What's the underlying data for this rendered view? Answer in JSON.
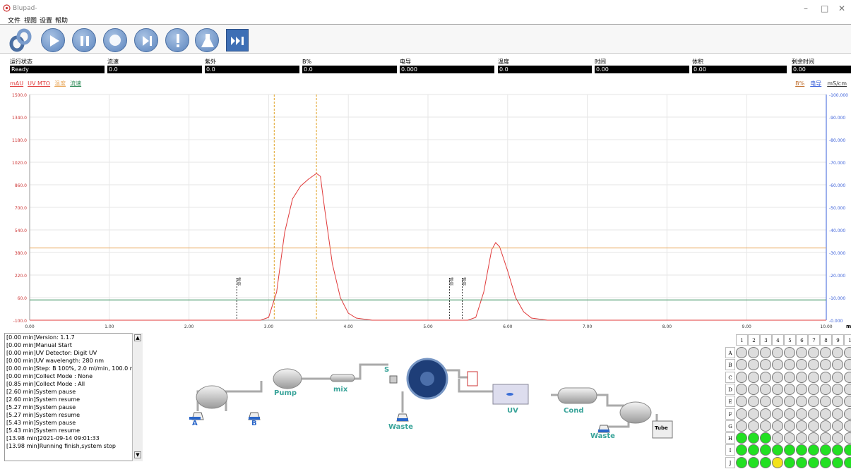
{
  "window": {
    "title": "Blupad-",
    "min": "–",
    "max": "□",
    "close": "✕"
  },
  "menu": [
    "文件",
    "视图",
    "设置",
    "帮助"
  ],
  "toolbar": [
    "link-icon",
    "play-icon",
    "pause-icon",
    "stop-icon",
    "step-icon",
    "alert-icon",
    "flask-icon",
    "skip-icon"
  ],
  "status": [
    {
      "label": "运行状态",
      "value": "Ready"
    },
    {
      "label": "流速",
      "value": "0.0"
    },
    {
      "label": "紫外",
      "value": "0.0"
    },
    {
      "label": "B%",
      "value": "0.0"
    },
    {
      "label": "电导",
      "value": "0.000"
    },
    {
      "label": "温度",
      "value": "0.0"
    },
    {
      "label": "时间",
      "value": "0.00"
    },
    {
      "label": "体积",
      "value": "0.00"
    },
    {
      "label": "剩余时间",
      "value": "0.00"
    }
  ],
  "legend_left": [
    {
      "label": "mAU",
      "color": "#e03b3b"
    },
    {
      "label": "UV MTO",
      "color": "#e03b3b"
    },
    {
      "label": "温度",
      "color": "#e8a75a"
    },
    {
      "label": "流速",
      "color": "#2e8b57"
    }
  ],
  "legend_right": [
    {
      "label": "B%",
      "color": "#c07030"
    },
    {
      "label": "电导",
      "color": "#3a5fd9"
    },
    {
      "label": "mS/cm",
      "color": "#333"
    }
  ],
  "chart_data": {
    "type": "line",
    "xlim": [
      0,
      10
    ],
    "ylim_left": [
      -100,
      1500
    ],
    "ylim_right": [
      0,
      100
    ],
    "x_ticks": [
      "0.00",
      "1.00",
      "2.00",
      "3.00",
      "4.00",
      "5.00",
      "6.00",
      "7.00",
      "8.00",
      "9.00",
      "10.00"
    ],
    "x_unit": "m",
    "y_left_ticks": [
      "1500.0",
      "1340.0",
      "1180.0",
      "1020.0",
      "860.0",
      "700.0",
      "540.0",
      "380.0",
      "220.0",
      "60.0",
      "-100.0"
    ],
    "y_right_ticks": [
      "100.000",
      "90.000",
      "80.000",
      "70.000",
      "60.000",
      "50.000",
      "40.000",
      "30.000",
      "20.000",
      "10.000",
      "0.000"
    ],
    "series": [
      {
        "name": "UV MTO",
        "color": "#e03b3b",
        "x": [
          0,
          2.9,
          3.0,
          3.1,
          3.2,
          3.3,
          3.4,
          3.5,
          3.6,
          3.65,
          3.7,
          3.8,
          3.9,
          4.0,
          4.1,
          4.3,
          5.5,
          5.6,
          5.7,
          5.8,
          5.85,
          5.9,
          6.0,
          6.1,
          6.2,
          6.3,
          6.5,
          10
        ],
        "y": [
          -100,
          -100,
          -80,
          100,
          520,
          760,
          850,
          900,
          940,
          920,
          700,
          300,
          60,
          -50,
          -85,
          -100,
          -100,
          -80,
          100,
          400,
          450,
          420,
          250,
          60,
          -40,
          -85,
          -100,
          -100
        ]
      },
      {
        "name": "温度",
        "color": "#e8a75a",
        "x": [
          0,
          10
        ],
        "y": [
          32,
          32
        ]
      },
      {
        "name": "流速",
        "color": "#2e8b57",
        "x": [
          0,
          10
        ],
        "y": [
          9,
          9
        ]
      }
    ],
    "markers": [
      {
        "x": 2.6,
        "label": "暂停"
      },
      {
        "x": 5.27,
        "label": "暂停"
      },
      {
        "x": 5.43,
        "label": "暂停"
      }
    ],
    "collect_lines": [
      3.07,
      3.6
    ]
  },
  "log": [
    "[0.00 min]Version: 1.1.7",
    "[0.00 min]Manual Start",
    "[0.00 min]UV Detector: Digit UV",
    "[0.00 min]UV wavelength: 280 nm",
    "[0.00 min]Step: B 100%, 2.0 ml/min, 100.0 min",
    "[0.00 min]Collect Mode : None",
    "[0.85 min]Collect Mode : All",
    "[2.60 min]System pause",
    "[2.60 min]System resume",
    "[5.27 min]System pause",
    "[5.27 min]System resume",
    "[5.43 min]System pause",
    "[5.43 min]System resume",
    "[13.98 min]2021-09-14 09:01:33",
    "[13.98 min]Running finish,system stop"
  ],
  "flow": {
    "a": "A",
    "b": "B",
    "pump": "Pump",
    "mix": "mix",
    "s": "S",
    "waste1": "Waste",
    "uv": "UV",
    "cond": "Cond",
    "waste2": "Waste",
    "tube": "Tube"
  },
  "tube_grid": {
    "cols": [
      "1",
      "2",
      "3",
      "4",
      "5",
      "6",
      "7",
      "8",
      "9",
      "1"
    ],
    "rows": [
      "A",
      "B",
      "C",
      "D",
      "E",
      "F",
      "G",
      "H",
      "I",
      "J"
    ],
    "green_rows": {
      "H": 3,
      "I": 10,
      "J": 10
    },
    "yellow": {
      "row": "J",
      "col": 4
    }
  }
}
